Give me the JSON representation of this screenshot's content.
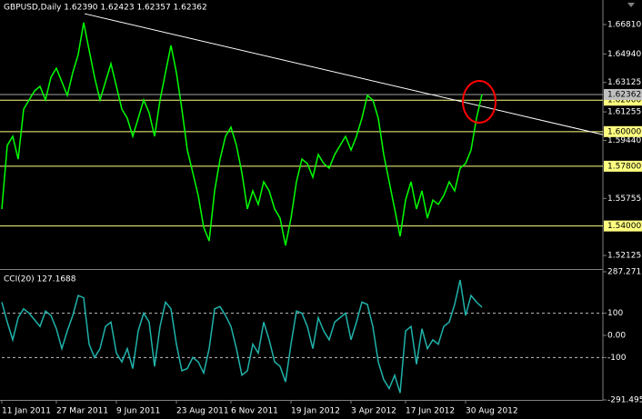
{
  "chart_data": [
    {
      "type": "line",
      "title": "GBPUSD,Daily  1.62390 1.62423 1.62357 1.62362",
      "xlim": [
        0,
        110.17
      ],
      "ylim": [
        1.5132,
        1.6837
      ],
      "yticks": [
        {
          "value": 1.6681,
          "label": "1.66810"
        },
        {
          "value": 1.6494,
          "label": "1.64940"
        },
        1.63125,
        1.61255,
        {
          "value": 1.5944,
          "label": "1.59440"
        },
        1.55755,
        1.52125
      ],
      "levels": [
        {
          "value": 1.62,
          "label": "1.62000"
        },
        {
          "value": 1.6,
          "label": "1.60000"
        },
        {
          "value": 1.578,
          "label": "1.57800"
        },
        {
          "value": 1.54,
          "label": "1.54000"
        }
      ],
      "level_color": "#ffff80",
      "current": {
        "value": 1.62362,
        "label": "1.62362"
      },
      "trendline": {
        "x": [
          15.17,
          110.17
        ],
        "y": [
          1.675,
          1.5981
        ],
        "color": "#ffffff"
      },
      "series": [
        {
          "color": "#00ff00",
          "values": [
            1.5508,
            1.5912,
            1.597,
            1.5825,
            1.6143,
            1.6201,
            1.6259,
            1.6288,
            1.6201,
            1.6346,
            1.6403,
            1.6317,
            1.623,
            1.6375,
            1.649,
            1.6693,
            1.6519,
            1.6346,
            1.6201,
            1.6317,
            1.6432,
            1.6288,
            1.6143,
            1.6085,
            1.597,
            1.6085,
            1.6201,
            1.612,
            1.597,
            1.6201,
            1.6375,
            1.6548,
            1.6375,
            1.6143,
            1.5883,
            1.5739,
            1.5594,
            1.5392,
            1.5305,
            1.5623,
            1.5825,
            1.597,
            1.6028,
            1.5912,
            1.5739,
            1.5508,
            1.5623,
            1.5537,
            1.5681,
            1.5623,
            1.5508,
            1.545,
            1.5276,
            1.545,
            1.5681,
            1.5825,
            1.5797,
            1.571,
            1.5854,
            1.5797,
            1.5768,
            1.5854,
            1.5912,
            1.597,
            1.5883,
            1.597,
            1.6085,
            1.623,
            1.6201,
            1.6085,
            1.5854,
            1.5681,
            1.5508,
            1.5334,
            1.5565,
            1.5681,
            1.5508,
            1.5623,
            1.545,
            1.5565,
            1.5537,
            1.5594,
            1.5681,
            1.5623,
            1.5768,
            1.5797,
            1.5883,
            1.6085,
            1.6236
          ]
        }
      ]
    },
    {
      "type": "line",
      "title": "CCI(20) 127.1688",
      "xlim": [
        0,
        110.17
      ],
      "ylim": [
        -291.495,
        287.271
      ],
      "yticks": [
        287.271,
        100,
        {
          "value": 0,
          "label": "0.00"
        },
        -100,
        -291.495
      ],
      "dashed_levels": [
        100,
        -100
      ],
      "xticks": [
        {
          "value": 0,
          "label": "11 Jan 2011"
        },
        {
          "value": 10,
          "label": "27 Mar 2011"
        },
        {
          "value": 21,
          "label": "9 Jun 2011"
        },
        {
          "value": 32,
          "label": "23 Aug 2011"
        },
        {
          "value": 42,
          "label": "6 Nov 2011"
        },
        {
          "value": 53,
          "label": "19 Jan 2012"
        },
        {
          "value": 64,
          "label": "3 Apr 2012"
        },
        {
          "value": 74,
          "label": "17 Jun 2012"
        },
        {
          "value": 85,
          "label": "30 Aug 2012"
        }
      ],
      "series": [
        {
          "color": "#20b2aa",
          "values": [
            150,
            60,
            -20,
            80,
            120,
            100,
            70,
            40,
            110,
            90,
            30,
            -60,
            20,
            90,
            180,
            170,
            -40,
            -100,
            -60,
            40,
            60,
            -80,
            -120,
            -60,
            -150,
            20,
            100,
            60,
            -140,
            40,
            150,
            120,
            -40,
            -160,
            -150,
            -100,
            -120,
            -170,
            -60,
            120,
            130,
            90,
            40,
            -60,
            -180,
            -160,
            -40,
            -80,
            60,
            -20,
            -120,
            -140,
            -210,
            -40,
            110,
            100,
            40,
            -60,
            80,
            20,
            -20,
            60,
            80,
            100,
            -20,
            60,
            150,
            140,
            40,
            -120,
            -200,
            -240,
            -180,
            -260,
            20,
            40,
            -130,
            30,
            -60,
            -20,
            -40,
            40,
            60,
            140,
            250,
            90,
            180,
            150,
            127.1688
          ]
        }
      ]
    }
  ]
}
